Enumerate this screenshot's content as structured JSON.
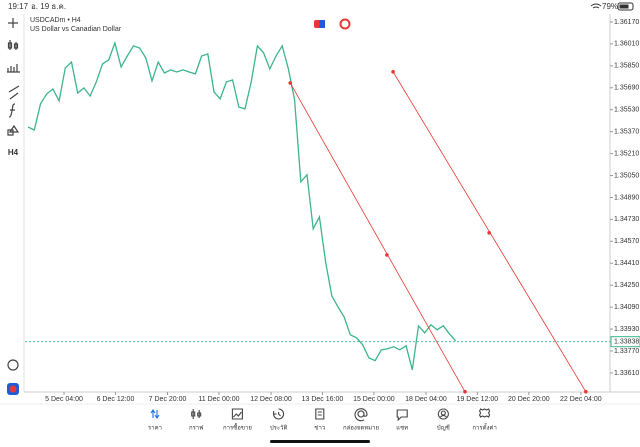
{
  "status_bar": {
    "time": "19:17",
    "date": "อ. 19 ธ.ค.",
    "battery": "79%"
  },
  "toolbar": {
    "timeframe": "H4"
  },
  "chart_data": {
    "type": "line",
    "title": "USDCADm • H4",
    "subtitle": "US Dollar vs Canadian Dollar",
    "color": "#3cb58c",
    "x": [
      0,
      1,
      2,
      3,
      4,
      5,
      6,
      7,
      8,
      9,
      10,
      11,
      12,
      13,
      14,
      15,
      16,
      17,
      18,
      19,
      20,
      21,
      22,
      23,
      24,
      25,
      26,
      27,
      28,
      29,
      30,
      31,
      32,
      33,
      34,
      35,
      36,
      37,
      38,
      39,
      40,
      41,
      42,
      43,
      44,
      45,
      46,
      47,
      48,
      49,
      50,
      51,
      52,
      53,
      54,
      55,
      56,
      57,
      58,
      59,
      60,
      61,
      62,
      63,
      64,
      65,
      66,
      67,
      68,
      69
    ],
    "values": [
      1.35404,
      1.35382,
      1.35572,
      1.35645,
      1.35681,
      1.35594,
      1.35835,
      1.35878,
      1.35652,
      1.35689,
      1.3563,
      1.35733,
      1.35864,
      1.35893,
      1.36017,
      1.35842,
      1.35922,
      1.35995,
      1.3598,
      1.35908,
      1.3574,
      1.35878,
      1.35798,
      1.3582,
      1.35805,
      1.3582,
      1.35805,
      1.35791,
      1.35922,
      1.35937,
      1.3566,
      1.35609,
      1.35733,
      1.35747,
      1.3555,
      1.35536,
      1.35733,
      1.35995,
      1.35944,
      1.35827,
      1.35922,
      1.35995,
      1.35827,
      1.35601,
      1.35004,
      1.35055,
      1.34661,
      1.34748,
      1.3442,
      1.34172,
      1.34092,
      1.34019,
      1.33888,
      1.33866,
      1.33815,
      1.3372,
      1.33699,
      1.33779,
      1.33786,
      1.33801,
      1.33779,
      1.33808,
      1.33633,
      1.33954,
      1.33903,
      1.33961,
      1.33925,
      1.33954,
      1.33895,
      1.33844
    ],
    "xlim": [
      -0.5,
      93.9
    ],
    "xticks": [
      {
        "value": 5.8,
        "label": "5 Dec 04:00"
      },
      {
        "value": 14.1,
        "label": "6 Dec 12:00"
      },
      {
        "value": 22.5,
        "label": "7 Dec 20:00"
      },
      {
        "value": 30.8,
        "label": "11 Dec 00:00"
      },
      {
        "value": 39.2,
        "label": "12 Dec 08:00"
      },
      {
        "value": 47.5,
        "label": "13 Dec 16:00"
      },
      {
        "value": 55.8,
        "label": "15 Dec 00:00"
      },
      {
        "value": 64.2,
        "label": "18 Dec 04:00"
      },
      {
        "value": 72.5,
        "label": "19 Dec 12:00"
      },
      {
        "value": 80.8,
        "label": "20 Dec 20:00"
      },
      {
        "value": 89.2,
        "label": "22 Dec 04:00"
      }
    ],
    "ylim": [
      1.33471,
      1.36228
    ],
    "yticks": [
      {
        "value": 1.3617,
        "label": "1.36170"
      },
      {
        "value": 1.3601,
        "label": "1.36010"
      },
      {
        "value": 1.3585,
        "label": "1.35850"
      },
      {
        "value": 1.3569,
        "label": "1.35690"
      },
      {
        "value": 1.3553,
        "label": "1.35530"
      },
      {
        "value": 1.3537,
        "label": "1.35370"
      },
      {
        "value": 1.3521,
        "label": "1.35210"
      },
      {
        "value": 1.3505,
        "label": "1.35050"
      },
      {
        "value": 1.3489,
        "label": "1.34890"
      },
      {
        "value": 1.3473,
        "label": "1.34730"
      },
      {
        "value": 1.3457,
        "label": "1.34570"
      },
      {
        "value": 1.3441,
        "label": "1.34410"
      },
      {
        "value": 1.3425,
        "label": "1.34250"
      },
      {
        "value": 1.3409,
        "label": "1.34090"
      },
      {
        "value": 1.3393,
        "label": "1.33930"
      },
      {
        "value": 1.3377,
        "label": "1.33770"
      },
      {
        "value": 1.3361,
        "label": "1.33610"
      }
    ],
    "current_price": 1.33838,
    "trendline_color": "#e53935",
    "trendlines": [
      {
        "x": [
          42.3,
          57.9,
          70.5
        ],
        "y": [
          1.35725,
          1.34471,
          1.33473
        ]
      },
      {
        "x": [
          58.9,
          74.4,
          90.0
        ],
        "y": [
          1.35806,
          1.34632,
          1.33473
        ]
      }
    ]
  },
  "bottom_nav": {
    "items": [
      "ราคา",
      "กราฟ",
      "การซื้อขาย",
      "ประวัติ",
      "ข่าว",
      "กล่องจดหมาย",
      "แชท",
      "บัญชี",
      "การตั้งค่า"
    ],
    "active": 0
  }
}
